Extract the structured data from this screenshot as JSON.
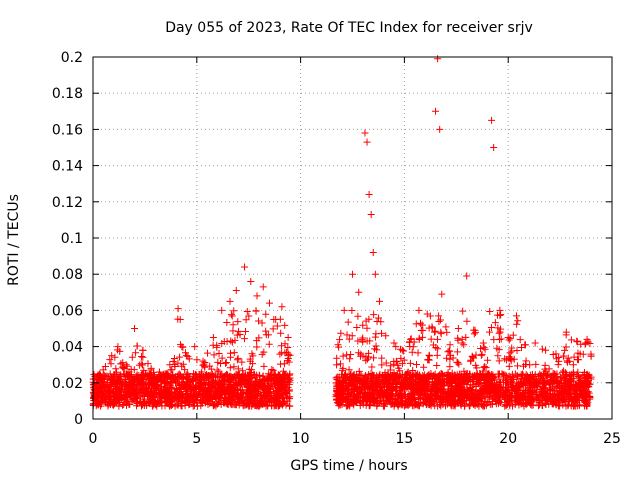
{
  "chart_data": {
    "type": "scatter",
    "title": "Day 055 of 2023, Rate Of TEC Index for receiver srjv",
    "xlabel": "GPS time / hours",
    "ylabel": "ROTI / TECUs",
    "xlim": [
      0,
      25
    ],
    "ylim": [
      0,
      0.2
    ],
    "xticks": [
      0,
      5,
      10,
      15,
      20,
      25
    ],
    "yticks": [
      0,
      0.02,
      0.04,
      0.06,
      0.08,
      0.1,
      0.12,
      0.14,
      0.16,
      0.18,
      0.2
    ],
    "marker": "+",
    "grid": true,
    "color": "#ff0000",
    "data_segments": [
      {
        "start": 0.0,
        "end": 9.5
      },
      {
        "start": 11.7,
        "end": 24.0
      }
    ],
    "series": [
      {
        "name": "srjv",
        "x": [
          0.1,
          0.3,
          0.6,
          0.9,
          1.2,
          1.6,
          2.0,
          2.4,
          2.8,
          3.2,
          3.7,
          4.1,
          4.2,
          4.5,
          4.9,
          5.3,
          5.8,
          6.2,
          6.6,
          6.9,
          7.3,
          7.6,
          7.9,
          8.2,
          8.5,
          8.8,
          9.1,
          9.4,
          11.8,
          12.1,
          12.5,
          12.8,
          13.1,
          13.2,
          13.3,
          13.4,
          13.5,
          13.6,
          13.8,
          14.1,
          14.5,
          14.9,
          15.3,
          15.7,
          16.1,
          16.5,
          16.6,
          16.7,
          16.8,
          17.2,
          17.6,
          18.0,
          18.4,
          18.8,
          19.1,
          19.2,
          19.3,
          19.6,
          20.0,
          20.4,
          20.8,
          21.3,
          21.8,
          22.3,
          22.8,
          23.3,
          23.8
        ],
        "y": [
          0.018,
          0.024,
          0.029,
          0.035,
          0.04,
          0.03,
          0.05,
          0.038,
          0.028,
          0.026,
          0.03,
          0.061,
          0.055,
          0.035,
          0.04,
          0.032,
          0.045,
          0.06,
          0.065,
          0.071,
          0.084,
          0.076,
          0.068,
          0.073,
          0.064,
          0.055,
          0.062,
          0.045,
          0.041,
          0.06,
          0.08,
          0.07,
          0.158,
          0.153,
          0.124,
          0.113,
          0.092,
          0.08,
          0.065,
          0.046,
          0.042,
          0.038,
          0.044,
          0.06,
          0.058,
          0.17,
          0.199,
          0.16,
          0.069,
          0.041,
          0.05,
          0.079,
          0.049,
          0.042,
          0.048,
          0.165,
          0.15,
          0.06,
          0.045,
          0.057,
          0.041,
          0.042,
          0.038,
          0.036,
          0.048,
          0.043,
          0.044
        ]
      }
    ]
  }
}
